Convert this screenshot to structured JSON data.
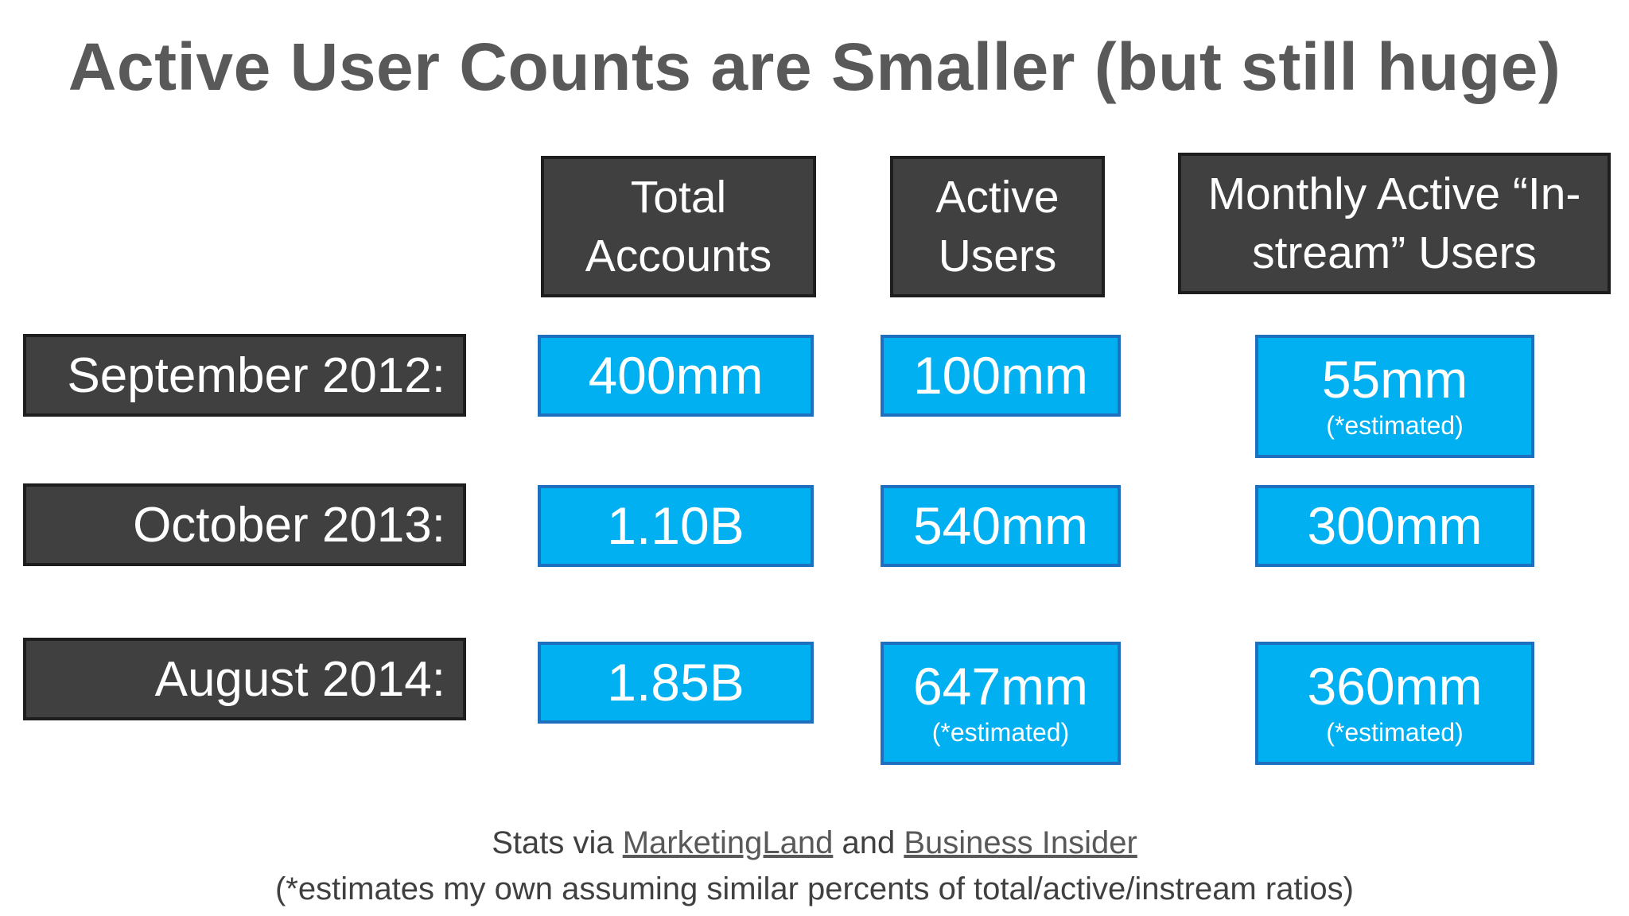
{
  "title": "Active User Counts are Smaller (but still huge)",
  "columns": {
    "total": "Total Accounts",
    "active": "Active Users",
    "monthly_line1": "Monthly Active “In-",
    "monthly_line2": "stream” Users"
  },
  "rows": [
    {
      "label": "September 2012:",
      "total": "400mm",
      "active": "100mm",
      "monthly": "55mm",
      "monthly_note": "(*estimated)"
    },
    {
      "label": "October 2013:",
      "total": "1.10B",
      "active": "540mm",
      "monthly": "300mm"
    },
    {
      "label": "August 2014:",
      "total": "1.85B",
      "active": "647mm",
      "active_note": "(*estimated)",
      "monthly": "360mm",
      "monthly_note": "(*estimated)"
    }
  ],
  "footer": {
    "prefix": "Stats via",
    "link1": "MarketingLand",
    "middle": "and",
    "link2": "Business Insider",
    "note": "(*estimates my own assuming similar percents of total/active/instream ratios)"
  }
}
